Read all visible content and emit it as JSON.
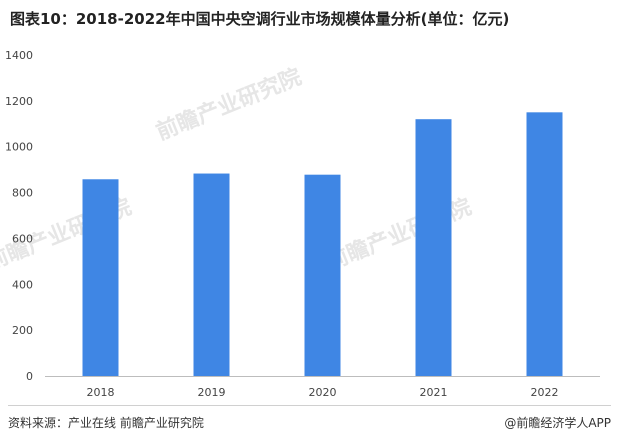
{
  "title": "图表10：2018-2022年中国中央空调行业市场规模体量分析(单位：亿元)",
  "source": "资料来源：产业在线 前瞻产业研究院",
  "credit": "@前瞻经济学人APP",
  "watermark": "前瞻产业研究院",
  "chart_data": {
    "type": "bar",
    "title": "图表10：2018-2022年中国中央空调行业市场规模体量分析(单位：亿元)",
    "categories": [
      "2018",
      "2019",
      "2020",
      "2021",
      "2022"
    ],
    "values": [
      858,
      883,
      878,
      1120,
      1150
    ],
    "ylim": [
      0,
      1400
    ],
    "yticks": [
      0,
      200,
      400,
      600,
      800,
      1000,
      1200,
      1400
    ],
    "xlabel": "",
    "ylabel": "",
    "grid": false,
    "legend": "none",
    "bar_color": "#3f86e4"
  }
}
